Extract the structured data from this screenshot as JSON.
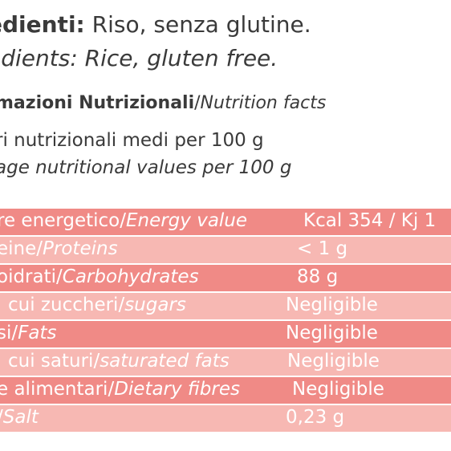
{
  "ingredients": {
    "it_label": "edienti:",
    "it_value": " Riso, senza glutine.",
    "en_text": "edients: Rice, gluten free."
  },
  "nutrition_header": {
    "it": "mazioni Nutrizionali",
    "sep": "/",
    "en": "Nutrition facts"
  },
  "average_values": {
    "it": "ri nutrizionali medi per 100 g",
    "en": "age nutritional values per 100 g"
  },
  "colors": {
    "row_dark": "#f08a86",
    "row_light": "#f7b8b3",
    "text": "#3a3a3a"
  },
  "table": {
    "rows": [
      {
        "it": "re energetico",
        "sep": "/",
        "en": "Energy value",
        "value": "Kcal 354  /  Kj 1"
      },
      {
        "it": "eine",
        "sep": "/",
        "en": "Proteins",
        "value": "< 1 g"
      },
      {
        "it": "oidrati",
        "sep": "/",
        "en": "Carbohydrates",
        "value": "88 g"
      },
      {
        "it": "cui zuccheri",
        "sep": "/",
        "en": "sugars",
        "value": "Negligible"
      },
      {
        "it": "si",
        "sep": "/",
        "en": "Fats",
        "value": "Negligible"
      },
      {
        "it": "cui saturi",
        "sep": "/",
        "en": "saturated fats",
        "value": "Negligible"
      },
      {
        "it": "e alimentari",
        "sep": "/",
        "en": "Dietary fibres",
        "value": "Negligible"
      },
      {
        "it": "",
        "sep": "/",
        "en": "Salt",
        "value": "0,23 g"
      }
    ]
  }
}
